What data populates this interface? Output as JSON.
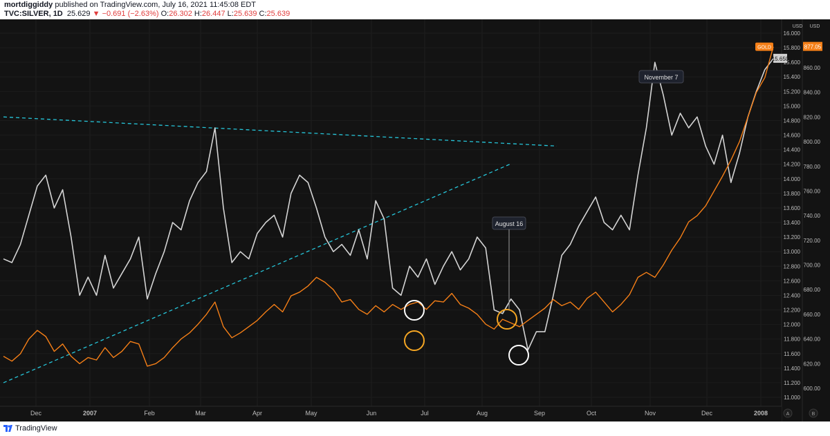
{
  "header": {
    "author": "mortdiggiddy",
    "published": "published on TradingView.com, July 16, 2021 11:45:08 EDT",
    "symbol": "TVC:SILVER, 1D",
    "last": "25.629",
    "change": "−0.691 (−2.63%)",
    "o_label": "O:",
    "o_value": "26.302",
    "h_label": "H:",
    "h_value": "26.447",
    "l_label": "L:",
    "l_value": "25.639",
    "c_label": "C:",
    "c_value": "25.639"
  },
  "footer": {
    "brand": "TradingView"
  },
  "colors": {
    "silver": "#d4d4d4",
    "gold": "#f57f17",
    "trendline": "#26c6da",
    "circle_orange": "#f5a623",
    "circle_white": "#ffffff",
    "background": "#131313"
  },
  "chart_data": {
    "type": "line",
    "x_labels": [
      "Dec",
      "2007",
      "Feb",
      "Mar",
      "Apr",
      "May",
      "Jun",
      "Jul",
      "Aug",
      "Sep",
      "Oct",
      "Nov",
      "Dec",
      "2008"
    ],
    "right_axis": {
      "unit": "USD",
      "ylim": [
        11.0,
        16.0
      ],
      "ticks": [
        "16.000",
        "15.800",
        "15.600",
        "15.400",
        "15.200",
        "15.000",
        "14.800",
        "14.600",
        "14.400",
        "14.200",
        "14.000",
        "13.800",
        "13.600",
        "13.400",
        "13.200",
        "13.000",
        "12.800",
        "12.600",
        "12.400",
        "12.200",
        "12.000",
        "11.800",
        "11.600",
        "11.400",
        "11.200",
        "11.000"
      ],
      "current_label": "15.650"
    },
    "left_axis": {
      "unit": "USD",
      "ylim": [
        600,
        880
      ],
      "ticks": [
        "860.00",
        "840.00",
        "820.00",
        "800.00",
        "780.00",
        "760.00",
        "740.00",
        "720.00",
        "700.00",
        "680.00",
        "660.00",
        "640.00",
        "620.00",
        "600.00"
      ],
      "current_label": "877.05",
      "series_label": "GOLD"
    },
    "axis_buttons": [
      "A",
      "B"
    ],
    "series": [
      {
        "name": "TVC:SILVER",
        "axis": "right",
        "values": [
          12.9,
          12.85,
          13.1,
          13.5,
          13.9,
          14.05,
          13.6,
          13.85,
          13.2,
          12.4,
          12.65,
          12.4,
          12.95,
          12.5,
          12.7,
          12.9,
          13.2,
          12.35,
          12.7,
          13.0,
          13.4,
          13.3,
          13.7,
          13.95,
          14.1,
          14.7,
          13.6,
          12.85,
          13.0,
          12.9,
          13.25,
          13.4,
          13.5,
          13.2,
          13.8,
          14.05,
          13.95,
          13.6,
          13.2,
          13.0,
          13.1,
          12.95,
          13.3,
          12.9,
          13.7,
          13.45,
          12.5,
          12.4,
          12.8,
          12.65,
          12.9,
          12.55,
          12.8,
          13.0,
          12.75,
          12.9,
          13.2,
          13.05,
          12.2,
          12.15,
          12.35,
          12.2,
          11.65,
          11.9,
          11.9,
          12.4,
          12.95,
          13.1,
          13.35,
          13.55,
          13.75,
          13.4,
          13.3,
          13.5,
          13.3,
          14.05,
          14.7,
          15.6,
          15.15,
          14.6,
          14.9,
          14.7,
          14.85,
          14.45,
          14.2,
          14.6,
          13.95,
          14.35,
          14.85,
          15.2,
          15.5,
          15.65
        ]
      },
      {
        "name": "GOLD",
        "axis": "left",
        "values": [
          626,
          622,
          628,
          640,
          647,
          642,
          630,
          636,
          626,
          620,
          625,
          623,
          633,
          625,
          630,
          638,
          636,
          618,
          620,
          625,
          633,
          640,
          645,
          652,
          660,
          670,
          650,
          641,
          645,
          650,
          655,
          662,
          668,
          662,
          675,
          678,
          683,
          690,
          686,
          680,
          670,
          672,
          664,
          660,
          667,
          662,
          668,
          664,
          668,
          670,
          664,
          671,
          670,
          677,
          668,
          665,
          660,
          652,
          648,
          656,
          653,
          650,
          655,
          660,
          665,
          672,
          667,
          670,
          664,
          673,
          678,
          670,
          662,
          668,
          676,
          690,
          694,
          690,
          700,
          712,
          722,
          735,
          740,
          748,
          760,
          772,
          785,
          800,
          820,
          840,
          852,
          877
        ]
      }
    ],
    "trendlines": [
      {
        "from": [
          "Nov",
          14.85
        ],
        "to": [
          "Oct",
          14.45
        ],
        "style": "dashed"
      },
      {
        "from": [
          "Nov",
          11.2
        ],
        "to": [
          "Aug",
          14.2
        ],
        "style": "dashed"
      }
    ],
    "annotations": [
      "November 7",
      "August 16"
    ],
    "highlight_circles": [
      {
        "series": "TVC:SILVER",
        "color": "white",
        "note": "late June low"
      },
      {
        "series": "GOLD",
        "color": "orange",
        "note": "late June low"
      },
      {
        "series": "GOLD",
        "color": "orange",
        "note": "mid August"
      },
      {
        "series": "TVC:SILVER",
        "color": "white",
        "note": "mid August low"
      }
    ]
  }
}
